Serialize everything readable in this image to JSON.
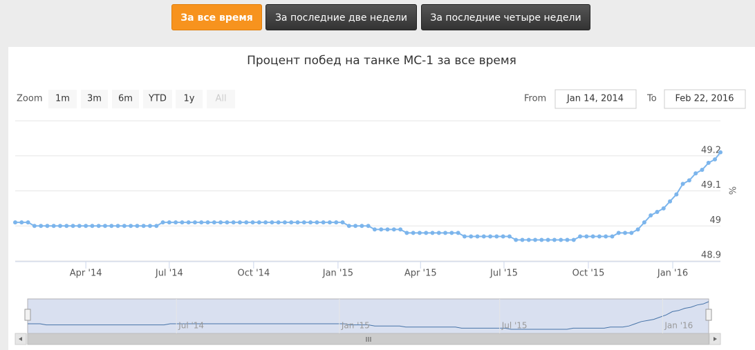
{
  "tabs": [
    "За все время",
    "За последние две недели",
    "За последние четыре недели"
  ],
  "chart_data": {
    "type": "line",
    "title": "Процент побед на танке МС-1 за все время",
    "color": "#7cb5ec",
    "y_label": "%",
    "range_selector": {
      "label": "Zoom",
      "buttons": [
        "1m",
        "3m",
        "6m",
        "YTD",
        "1y",
        "All"
      ],
      "from_label": "From",
      "from": "Jan 14, 2014",
      "to_label": "To",
      "to": "Feb 22, 2016"
    },
    "x": [
      "2014-01-14",
      "2014-01-21",
      "2014-01-28",
      "2014-02-04",
      "2014-02-11",
      "2014-02-18",
      "2014-02-25",
      "2014-03-04",
      "2014-03-11",
      "2014-03-18",
      "2014-03-25",
      "2014-04-01",
      "2014-04-08",
      "2014-04-15",
      "2014-04-22",
      "2014-04-29",
      "2014-05-06",
      "2014-05-13",
      "2014-05-20",
      "2014-05-27",
      "2014-06-03",
      "2014-06-10",
      "2014-06-17",
      "2014-06-24",
      "2014-07-01",
      "2014-07-08",
      "2014-07-15",
      "2014-07-22",
      "2014-07-29",
      "2014-08-05",
      "2014-08-12",
      "2014-08-19",
      "2014-08-26",
      "2014-09-02",
      "2014-09-09",
      "2014-09-16",
      "2014-09-23",
      "2014-09-30",
      "2014-10-07",
      "2014-10-14",
      "2014-10-21",
      "2014-10-28",
      "2014-11-04",
      "2014-11-11",
      "2014-11-18",
      "2014-11-25",
      "2014-12-02",
      "2014-12-09",
      "2014-12-16",
      "2014-12-23",
      "2014-12-30",
      "2015-01-06",
      "2015-01-13",
      "2015-01-20",
      "2015-01-27",
      "2015-02-03",
      "2015-02-10",
      "2015-02-17",
      "2015-02-24",
      "2015-03-03",
      "2015-03-10",
      "2015-03-17",
      "2015-03-24",
      "2015-03-31",
      "2015-04-07",
      "2015-04-14",
      "2015-04-21",
      "2015-04-28",
      "2015-05-05",
      "2015-05-12",
      "2015-05-19",
      "2015-05-26",
      "2015-06-02",
      "2015-06-09",
      "2015-06-16",
      "2015-06-23",
      "2015-06-30",
      "2015-07-07",
      "2015-07-14",
      "2015-07-21",
      "2015-07-28",
      "2015-08-04",
      "2015-08-11",
      "2015-08-18",
      "2015-08-25",
      "2015-09-01",
      "2015-09-08",
      "2015-09-15",
      "2015-09-22",
      "2015-09-29",
      "2015-10-06",
      "2015-10-13",
      "2015-10-20",
      "2015-10-27",
      "2015-11-03",
      "2015-11-10",
      "2015-11-17",
      "2015-11-24",
      "2015-12-01",
      "2015-12-08",
      "2015-12-15",
      "2015-12-22",
      "2015-12-29",
      "2016-01-05",
      "2016-01-12",
      "2016-01-19",
      "2016-01-26",
      "2016-02-02",
      "2016-02-09",
      "2016-02-16",
      "2016-02-22"
    ],
    "values": [
      49.01,
      49.01,
      49.01,
      49.0,
      49.0,
      49.0,
      49.0,
      49.0,
      49.0,
      49.0,
      49.0,
      49.0,
      49.0,
      49.0,
      49.0,
      49.0,
      49.0,
      49.0,
      49.0,
      49.0,
      49.0,
      49.0,
      49.0,
      49.01,
      49.01,
      49.01,
      49.01,
      49.01,
      49.01,
      49.01,
      49.01,
      49.01,
      49.01,
      49.01,
      49.01,
      49.01,
      49.01,
      49.01,
      49.01,
      49.01,
      49.01,
      49.01,
      49.01,
      49.01,
      49.01,
      49.01,
      49.01,
      49.01,
      49.01,
      49.01,
      49.01,
      49.01,
      49.0,
      49.0,
      49.0,
      49.0,
      48.99,
      48.99,
      48.99,
      48.99,
      48.99,
      48.98,
      48.98,
      48.98,
      48.98,
      48.98,
      48.98,
      48.98,
      48.98,
      48.98,
      48.97,
      48.97,
      48.97,
      48.97,
      48.97,
      48.97,
      48.97,
      48.97,
      48.96,
      48.96,
      48.96,
      48.96,
      48.96,
      48.96,
      48.96,
      48.96,
      48.96,
      48.96,
      48.97,
      48.97,
      48.97,
      48.97,
      48.97,
      48.97,
      48.98,
      48.98,
      48.98,
      48.99,
      49.01,
      49.03,
      49.04,
      49.05,
      49.07,
      49.09,
      49.12,
      49.13,
      49.15,
      49.16,
      49.18,
      49.19,
      49.21
    ],
    "xlim": [
      "2014-01-14",
      "2016-02-22"
    ],
    "xticks": [
      {
        "value": "2014-04-01",
        "label": "Apr '14"
      },
      {
        "value": "2014-07-01",
        "label": "Jul '14"
      },
      {
        "value": "2014-10-01",
        "label": "Oct '14"
      },
      {
        "value": "2015-01-01",
        "label": "Jan '15"
      },
      {
        "value": "2015-04-01",
        "label": "Apr '15"
      },
      {
        "value": "2015-07-01",
        "label": "Jul '15"
      },
      {
        "value": "2015-10-01",
        "label": "Oct '15"
      },
      {
        "value": "2016-01-01",
        "label": "Jan '16"
      }
    ],
    "ylim": [
      48.9,
      49.3
    ],
    "yticks": [
      48.9,
      49,
      49.1,
      49.2
    ],
    "grid": true,
    "navigator_xticks": [
      {
        "value": "2014-07-01",
        "label": "Jul '14"
      },
      {
        "value": "2015-01-01",
        "label": "Jan '15"
      },
      {
        "value": "2015-07-01",
        "label": "Jul '15"
      },
      {
        "value": "2016-01-01",
        "label": "Jan '16"
      }
    ]
  }
}
